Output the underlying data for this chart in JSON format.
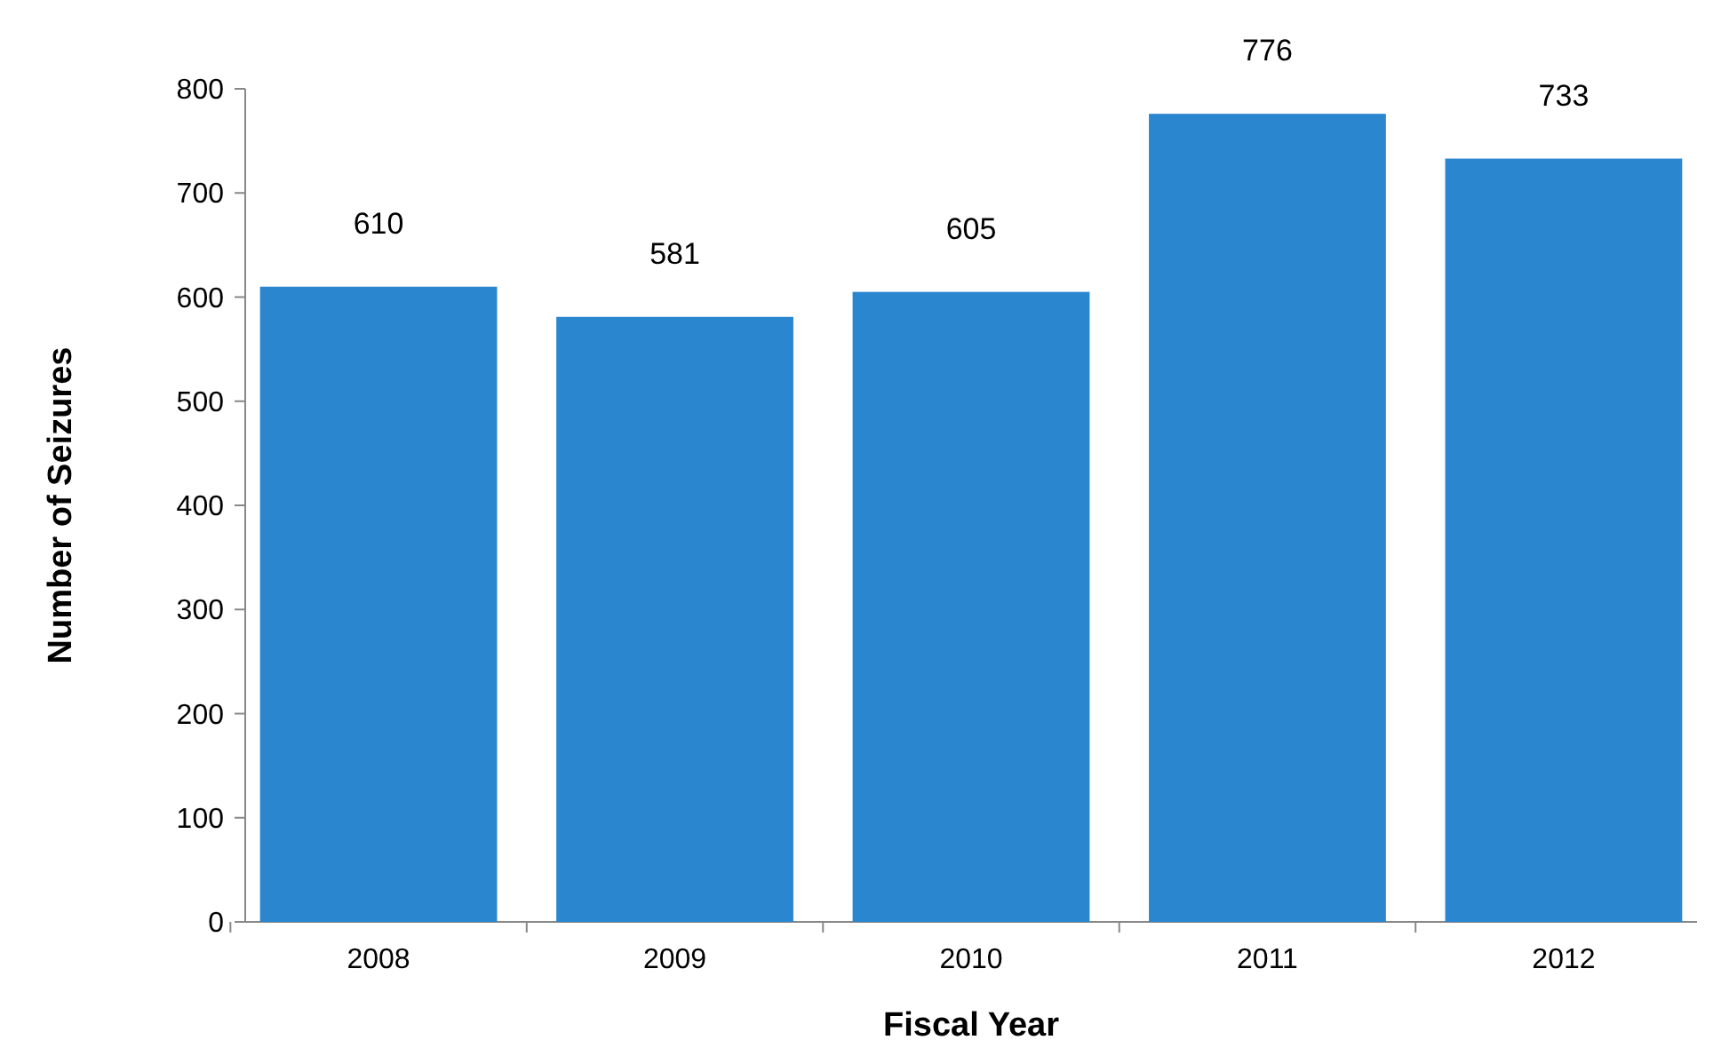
{
  "chart_data": {
    "type": "bar",
    "xlabel": "Fiscal Year",
    "ylabel": "Number of Seizures",
    "categories": [
      "2008",
      "2009",
      "2010",
      "2011",
      "2012"
    ],
    "values": [
      610,
      581,
      605,
      776,
      733
    ],
    "color": "#2a86cf",
    "ylim": [
      0,
      800
    ],
    "yticks": [
      0,
      100,
      200,
      300,
      400,
      500,
      600,
      700,
      800
    ],
    "data_labels": true
  }
}
